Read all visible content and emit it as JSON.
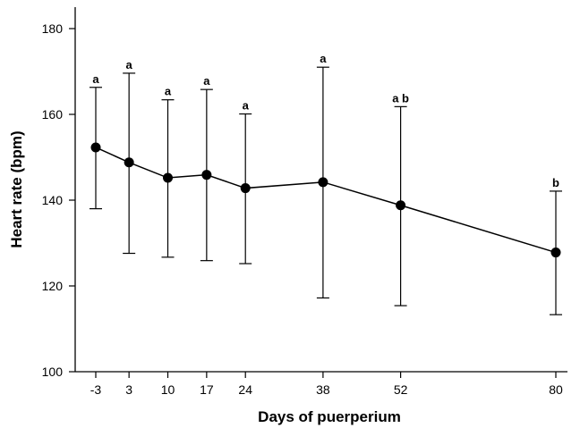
{
  "chart_data": {
    "type": "line",
    "xlabel": "Days of puerperium",
    "ylabel": "Heart rate (bpm)",
    "ylim": [
      100,
      185
    ],
    "xlim": [
      -10,
      84
    ],
    "x_ticks": [
      -3,
      3,
      10,
      17,
      24,
      38,
      52,
      80
    ],
    "x_tick_labels": [
      "-3",
      "3",
      "10",
      "17",
      "24",
      "38",
      "52",
      "80"
    ],
    "y_ticks": [
      100,
      120,
      140,
      160,
      180
    ],
    "y_tick_labels": [
      "100",
      "120",
      "140",
      "160",
      "180"
    ],
    "grid": false,
    "series": [
      {
        "x": [
          -3,
          3,
          10,
          17,
          24,
          38,
          52,
          80
        ],
        "values": [
          152.3,
          148.8,
          145.2,
          145.9,
          142.8,
          144.2,
          138.8,
          127.8
        ],
        "error_upper": [
          166.3,
          169.6,
          163.4,
          165.8,
          160.1,
          171.0,
          161.8,
          142.1
        ],
        "error_lower": [
          138.0,
          127.6,
          126.7,
          125.9,
          125.2,
          117.2,
          115.4,
          113.3
        ],
        "significance": [
          "a",
          "a",
          "a",
          "a",
          "a",
          "a",
          "a b",
          "b"
        ]
      }
    ]
  }
}
